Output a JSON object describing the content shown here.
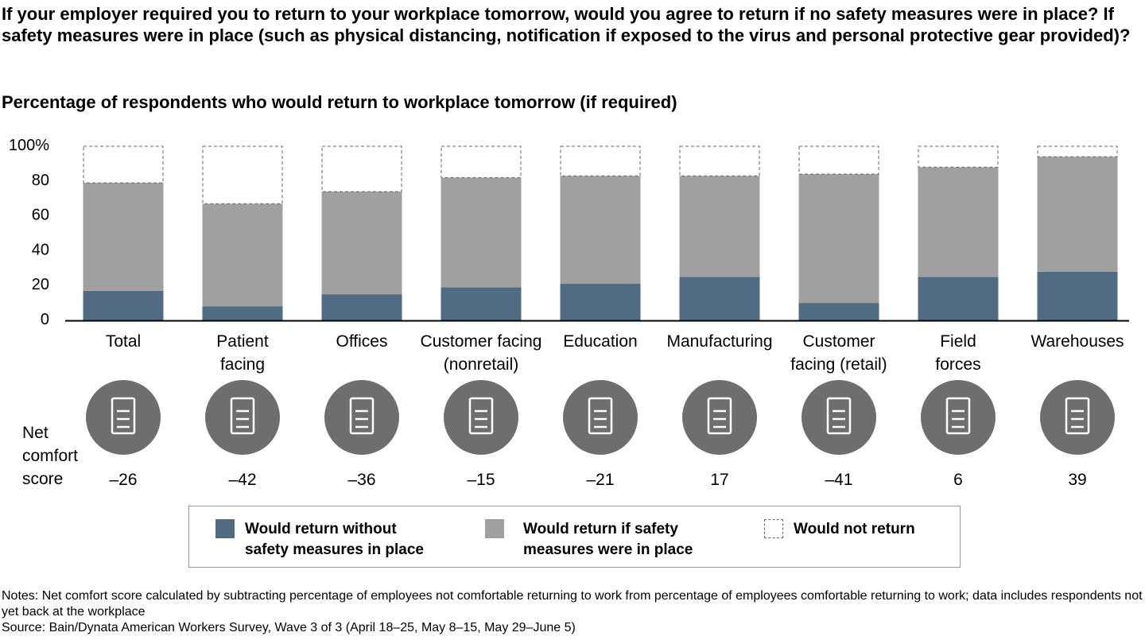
{
  "title": "If your employer required you to return to your workplace tomorrow, would you agree to return if no safety measures were in place? If safety measures were in place (such as physical distancing, notification if exposed to the virus and personal protective gear provided)?",
  "chart_data": {
    "type": "bar",
    "stacked": true,
    "title": "Percentage of respondents who would return to workplace tomorrow (if required)",
    "categories": [
      "Total",
      "Patient facing",
      "Offices",
      "Customer facing (nonretail)",
      "Education",
      "Manufacturing",
      "Customer facing (retail)",
      "Field forces",
      "Warehouses"
    ],
    "category_lines": [
      [
        "Total"
      ],
      [
        "Patient",
        "facing"
      ],
      [
        "Offices"
      ],
      [
        "Customer facing",
        "(nonretail)"
      ],
      [
        "Education"
      ],
      [
        "Manufacturing"
      ],
      [
        "Customer",
        "facing (retail)"
      ],
      [
        "Field",
        "forces"
      ],
      [
        "Warehouses"
      ]
    ],
    "series": [
      {
        "name": "Would return without safety measures in place",
        "values": [
          17,
          8,
          15,
          19,
          21,
          25,
          10,
          25,
          28
        ],
        "color": "#516b82"
      },
      {
        "name": "Would return if safety measures were in place",
        "values": [
          62,
          59,
          59,
          63,
          62,
          58,
          74,
          63,
          66
        ],
        "color": "#a0a0a0"
      },
      {
        "name": "Would not return",
        "values": [
          21,
          33,
          26,
          18,
          17,
          17,
          16,
          12,
          6
        ],
        "color": "#ffffff",
        "style": "dashed"
      }
    ],
    "yticks": [
      "0",
      "20",
      "40",
      "60",
      "80",
      "100%"
    ],
    "ylim": [
      0,
      100
    ],
    "grid": false,
    "legend_placement": "bottom"
  },
  "icons": [
    "calculator-icon",
    "nurse-icon",
    "office-chair-icon",
    "customer-service-icon",
    "teacher-icon",
    "factory-icon",
    "shopping-bag-icon",
    "delivery-runner-icon",
    "forklift-icon"
  ],
  "net_comfort": {
    "label_lines": [
      "Net",
      "comfort",
      "score"
    ],
    "values": [
      "–26",
      "–42",
      "–36",
      "–15",
      "–21",
      "17",
      "–41",
      "6",
      "39"
    ]
  },
  "legend": {
    "items": [
      {
        "lines": [
          "Would return without",
          "safety measures in place"
        ]
      },
      {
        "lines": [
          "Would return if safety",
          "measures were in place"
        ]
      },
      {
        "lines": [
          "Would not return"
        ]
      }
    ]
  },
  "notes": {
    "line1": "Notes: Net comfort score calculated by subtracting percentage of employees not comfortable returning to work from percentage of employees comfortable returning to work; data includes respondents not yet back at the workplace",
    "line2": "Source: Bain/Dynata American Workers Survey, Wave 3 of 3 (April 18–25, May 8–15, May 29–June 5)"
  },
  "colors": {
    "icon_circle": "#6e6e6e",
    "axis": "#000000"
  }
}
